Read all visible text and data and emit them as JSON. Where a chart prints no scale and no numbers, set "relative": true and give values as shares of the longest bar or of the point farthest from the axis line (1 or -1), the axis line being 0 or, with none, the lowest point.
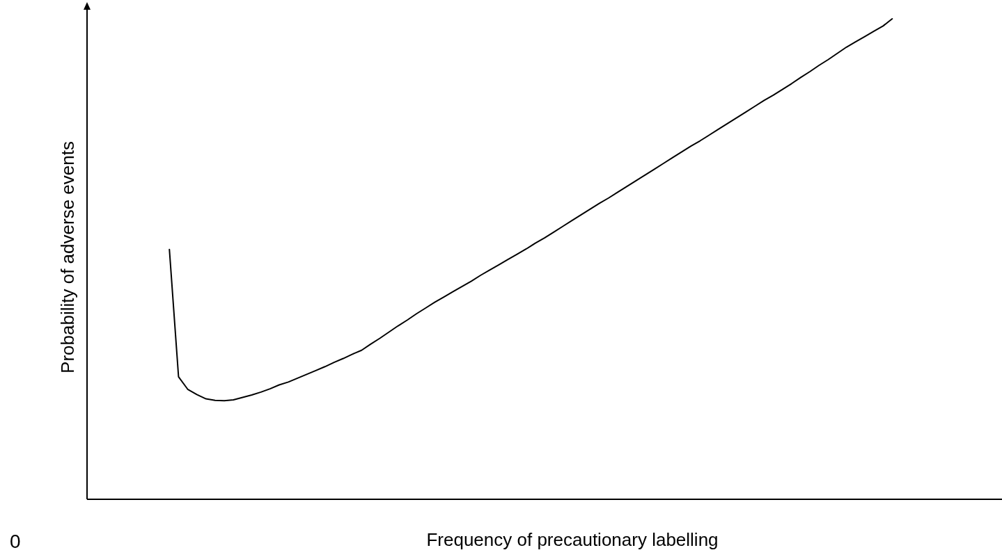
{
  "chart_data": {
    "type": "line",
    "relative": true,
    "xlabel": "Frequency of precautionary labelling",
    "ylabel": "Probability of adverse events",
    "annotations": [
      "0"
    ],
    "marker": "none",
    "line_style": "solid",
    "categories": [
      null,
      null,
      null,
      null,
      null,
      null,
      null,
      null,
      null,
      null,
      null,
      null,
      null,
      null,
      null,
      null,
      null,
      null,
      null,
      null,
      null,
      null,
      null,
      null,
      null,
      null,
      null,
      null,
      null,
      null,
      null,
      null,
      null,
      null,
      null,
      null,
      null,
      null,
      null,
      null,
      null,
      null,
      null,
      null,
      null,
      null,
      null,
      null,
      null,
      null,
      null,
      null,
      null,
      null,
      null,
      null,
      null,
      null,
      null,
      null,
      null,
      null,
      null,
      null,
      null,
      null,
      null,
      null,
      null,
      null,
      null,
      null,
      null,
      null,
      null,
      null,
      null,
      null,
      null,
      null,
      null,
      null,
      null,
      null,
      null,
      null,
      null,
      null,
      null,
      null,
      null,
      null,
      null,
      null,
      null,
      null,
      null,
      null,
      null,
      null,
      null
    ],
    "series": [
      {
        "color": "#000000",
        "values": [
          null,
          null,
          null,
          null,
          null,
          null,
          null,
          null,
          null,
          0.52,
          0.255,
          0.229,
          0.218,
          0.209,
          0.206,
          0.205,
          0.207,
          0.212,
          0.217,
          0.223,
          0.23,
          0.238,
          0.244,
          0.252,
          0.26,
          0.268,
          0.276,
          0.285,
          0.293,
          0.302,
          0.31,
          0.323,
          0.335,
          0.348,
          0.361,
          0.373,
          0.386,
          0.398,
          0.41,
          0.421,
          0.432,
          0.443,
          0.454,
          0.466,
          0.477,
          0.488,
          0.499,
          0.51,
          0.521,
          0.533,
          0.544,
          0.556,
          0.568,
          0.58,
          0.592,
          0.604,
          0.616,
          0.627,
          0.639,
          0.651,
          0.663,
          0.675,
          0.687,
          0.699,
          0.711,
          0.723,
          0.735,
          0.746,
          0.758,
          0.77,
          0.782,
          0.794,
          0.806,
          0.818,
          0.83,
          0.841,
          0.853,
          0.865,
          0.878,
          0.89,
          0.903,
          0.915,
          0.928,
          0.941,
          0.952,
          0.963,
          0.974,
          0.985,
          1,
          null,
          null,
          null,
          null,
          null,
          null,
          null,
          null,
          null,
          null,
          null,
          null
        ]
      }
    ]
  }
}
